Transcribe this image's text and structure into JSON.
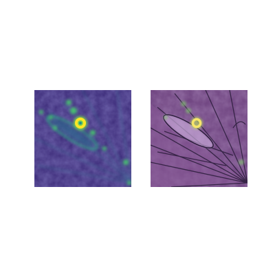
{
  "panels": [
    {
      "name": "attention-heatmap",
      "colormap": "viridis",
      "colors": {
        "background": "#3b2f7a",
        "low": "#44157a",
        "mid": "#2c6f8e",
        "high": "#35b779",
        "peak": "#fde725"
      }
    },
    {
      "name": "heatmap-overlay",
      "colormap": "viridis-over-photo",
      "colors": {
        "background": "#6b3f7c",
        "tint": "#8a5a98",
        "lines": "#2a1c3a",
        "highlight": "#d7c3e6",
        "peak": "#f7e66a"
      }
    }
  ]
}
